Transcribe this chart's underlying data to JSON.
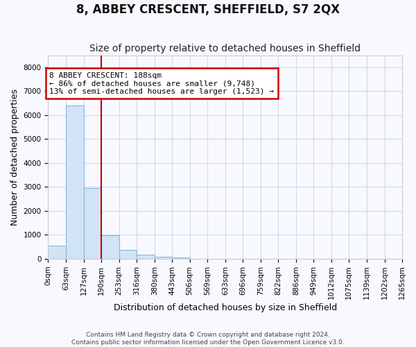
{
  "title": "8, ABBEY CRESCENT, SHEFFIELD, S7 2QX",
  "subtitle": "Size of property relative to detached houses in Sheffield",
  "xlabel": "Distribution of detached houses by size in Sheffield",
  "ylabel": "Number of detached properties",
  "bar_values": [
    550,
    6400,
    2950,
    970,
    380,
    160,
    90,
    55,
    0,
    0,
    0,
    0,
    0,
    0,
    0,
    0,
    0,
    0,
    0,
    0
  ],
  "bin_edges": [
    0,
    63,
    127,
    190,
    253,
    316,
    380,
    443,
    506,
    569,
    633,
    696,
    759,
    822,
    886,
    949,
    1012,
    1075,
    1139,
    1202,
    1265
  ],
  "bar_color": "#d0e4f5",
  "bar_edge_color": "#89b8d8",
  "red_line_x": 190,
  "ylim": [
    0,
    8500
  ],
  "yticks": [
    0,
    1000,
    2000,
    3000,
    4000,
    5000,
    6000,
    7000,
    8000
  ],
  "annotation_text": "8 ABBEY CRESCENT: 188sqm\n← 86% of detached houses are smaller (9,748)\n13% of semi-detached houses are larger (1,523) →",
  "annotation_box_color": "#ffffff",
  "annotation_box_edge_color": "#cc0000",
  "footer_line1": "Contains HM Land Registry data © Crown copyright and database right 2024.",
  "footer_line2": "Contains public sector information licensed under the Open Government Licence v3.0.",
  "background_color": "#f8f9ff",
  "grid_color": "#d0d8e8",
  "title_fontsize": 12,
  "subtitle_fontsize": 10,
  "ylabel_fontsize": 9,
  "xlabel_fontsize": 9,
  "tick_fontsize": 7.5,
  "annotation_fontsize": 8,
  "footer_fontsize": 6.5
}
